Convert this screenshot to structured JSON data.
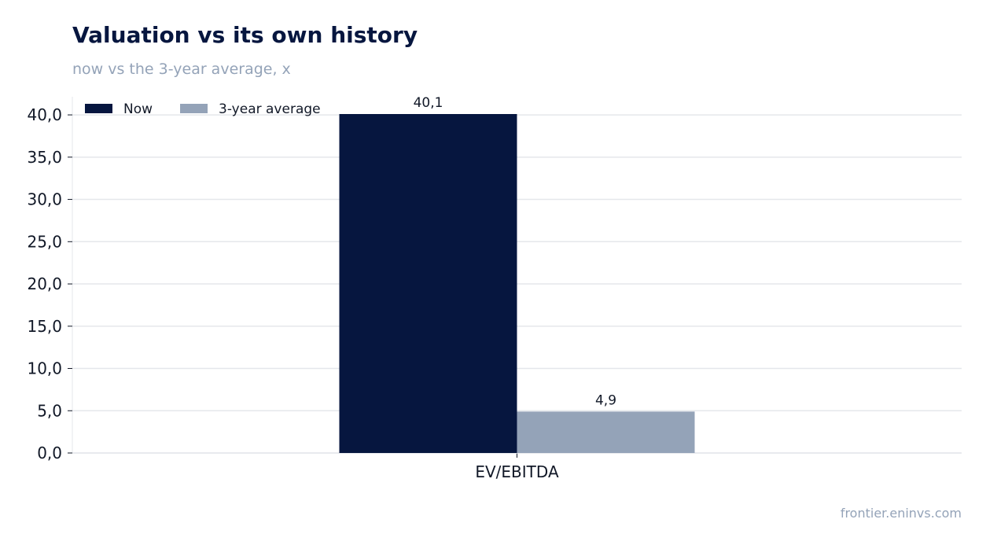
{
  "chart_data": {
    "type": "bar",
    "title": "Valuation vs its own history",
    "subtitle": "now vs the 3-year average, x",
    "categories": [
      "EV/EBITDA"
    ],
    "series": [
      {
        "name": "Now",
        "values": [
          40.1
        ],
        "color": "#06163f"
      },
      {
        "name": "3-year average",
        "values": [
          4.9
        ],
        "color": "#94a3b8"
      }
    ],
    "data_labels": [
      "40,1",
      "4,9"
    ],
    "yticks": [
      0,
      5,
      10,
      15,
      20,
      25,
      30,
      35,
      40
    ],
    "ytick_labels": [
      "0,0",
      "5,0",
      "10,0",
      "15,0",
      "20,0",
      "25,0",
      "30,0",
      "35,0",
      "40,0"
    ],
    "ylim": [
      0,
      40.1
    ],
    "grid": true,
    "legend_position": "top-left",
    "xlabel": "",
    "ylabel": ""
  },
  "source": "frontier.eninvs.com",
  "colors": {
    "grid": "#e5e7eb",
    "axis": "#e5e7eb",
    "text": "#111827"
  }
}
